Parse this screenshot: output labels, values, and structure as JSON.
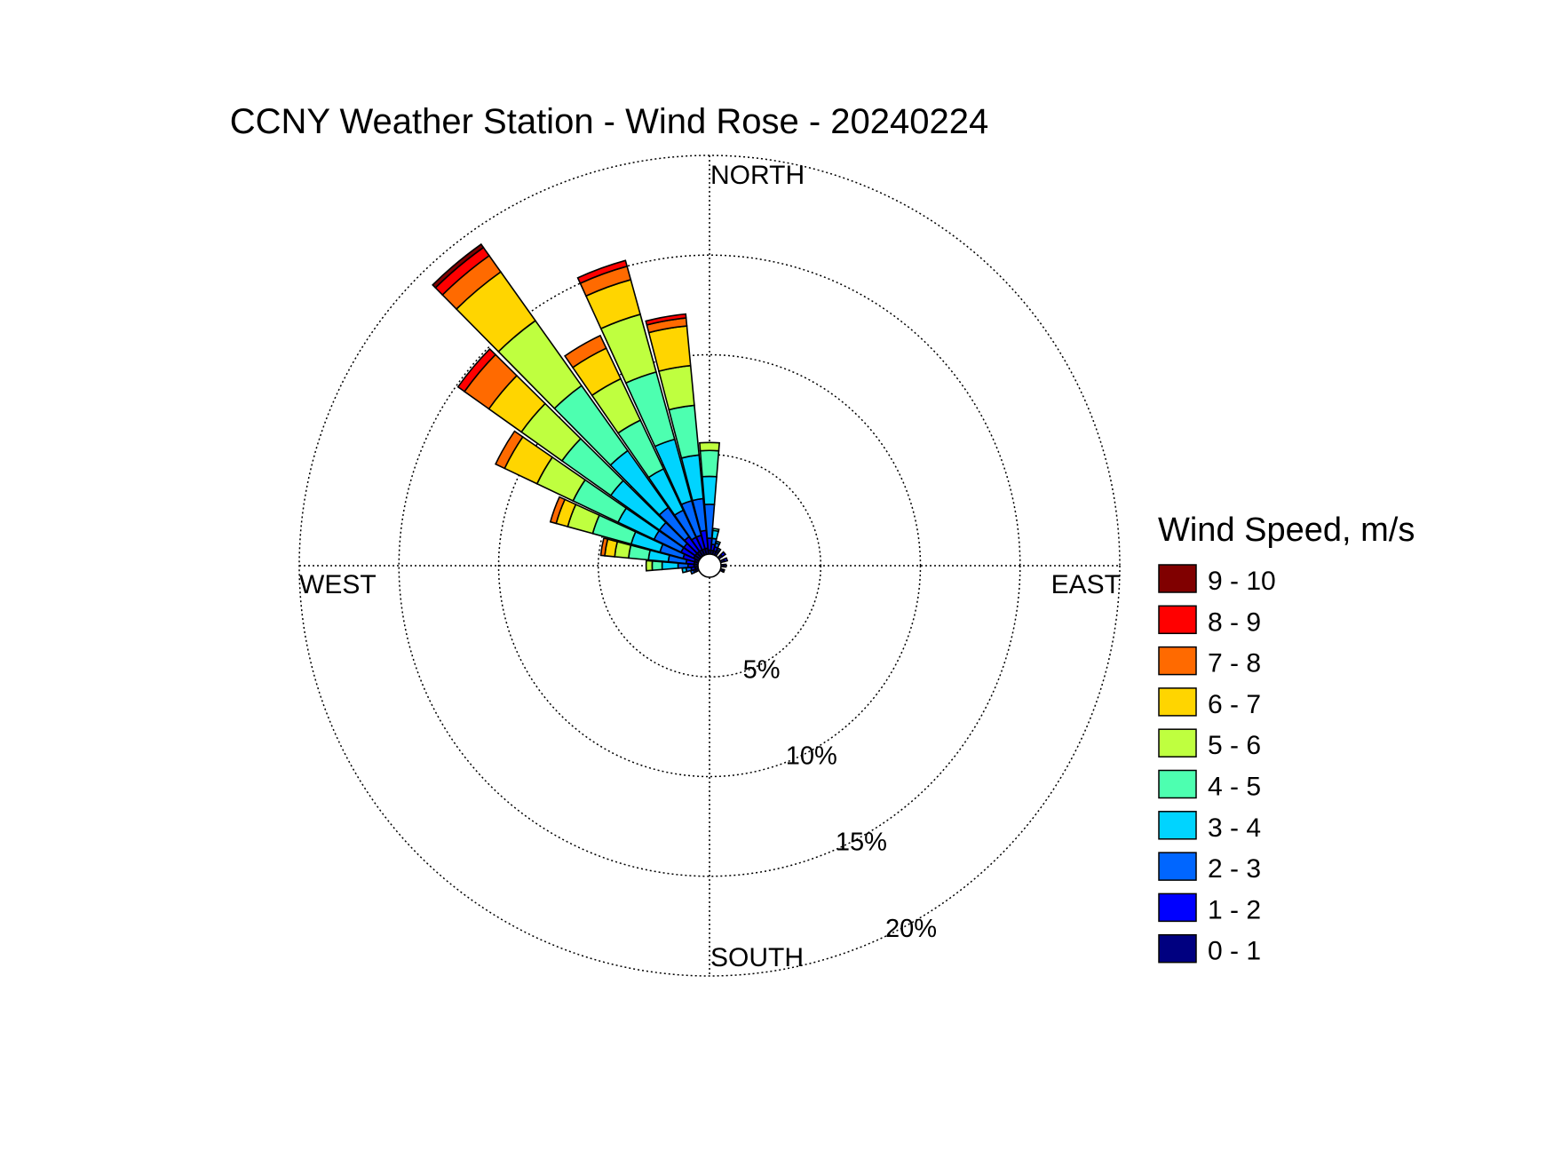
{
  "chart_data": {
    "type": "wind-rose",
    "title": "CCNY Weather Station - Wind Rose - 20240224",
    "directions": {
      "north": "NORTH",
      "south": "SOUTH",
      "east": "EAST",
      "west": "WEST"
    },
    "radial_axis": {
      "max": 20,
      "ticks": [
        5,
        10,
        15,
        20
      ],
      "tick_labels": [
        "5%",
        "10%",
        "15%",
        "20%"
      ]
    },
    "legend": {
      "title": "Wind Speed, m/s",
      "bins": [
        {
          "label": "9 - 10",
          "color": "#800000"
        },
        {
          "label": "8 - 9",
          "color": "#ff0000"
        },
        {
          "label": "7 - 8",
          "color": "#ff6a00"
        },
        {
          "label": "6 - 7",
          "color": "#ffd500"
        },
        {
          "label": "5 - 6",
          "color": "#bfff3f"
        },
        {
          "label": "4 - 5",
          "color": "#4dffb0"
        },
        {
          "label": "3 - 4",
          "color": "#00d4ff"
        },
        {
          "label": "2 - 3",
          "color": "#0066ff"
        },
        {
          "label": "1 - 2",
          "color": "#0000ff"
        },
        {
          "label": "0 - 1",
          "color": "#000080"
        }
      ]
    },
    "speed_bins": [
      "0 - 1",
      "1 - 2",
      "2 - 3",
      "3 - 4",
      "4 - 5",
      "5 - 6",
      "6 - 7",
      "7 - 8",
      "8 - 9",
      "9 - 10"
    ],
    "sector_width_deg": 10,
    "sectors": [
      {
        "direction_deg": 0,
        "cumulative": [
          0.2,
          0.8,
          2.5,
          3.9,
          5.2,
          5.6
        ]
      },
      {
        "direction_deg": 10,
        "cumulative": [
          0.2,
          0.5,
          0.8,
          1.2,
          1.3
        ]
      },
      {
        "direction_deg": 20,
        "cumulative": [
          0.2,
          0.4,
          0.6,
          0.7
        ]
      },
      {
        "direction_deg": 30,
        "cumulative": [
          0.2,
          0.3,
          0.4
        ]
      },
      {
        "direction_deg": 50,
        "cumulative": [
          0.2,
          0.4
        ]
      },
      {
        "direction_deg": 70,
        "cumulative": [
          0.2,
          0.35
        ]
      },
      {
        "direction_deg": 90,
        "cumulative": [
          0.15,
          0.25
        ]
      },
      {
        "direction_deg": 110,
        "cumulative": [
          0.15,
          0.2
        ]
      },
      {
        "direction_deg": 330,
        "cumulative": [
          0.3,
          1.0,
          2.5,
          4.8,
          7.5,
          9.8,
          11.5,
          12.2
        ]
      },
      {
        "direction_deg": 340,
        "cumulative": [
          0.3,
          1.0,
          2.8,
          6.0,
          9.5,
          12.5,
          14.3,
          15.0,
          15.3
        ]
      },
      {
        "direction_deg": 350,
        "cumulative": [
          0.3,
          1.2,
          2.8,
          5.0,
          7.5,
          9.5,
          11.5,
          11.9,
          12.1
        ]
      },
      {
        "direction_deg": 320,
        "cumulative": [
          0.3,
          1.2,
          3.0,
          6.5,
          10.5,
          14.5,
          17.5,
          18.5,
          19.0,
          19.2
        ]
      },
      {
        "direction_deg": 310,
        "cumulative": [
          0.3,
          1.0,
          2.5,
          5.5,
          8.5,
          11.0,
          13.0,
          14.5,
          14.9
        ]
      },
      {
        "direction_deg": 300,
        "cumulative": [
          0.3,
          1.0,
          2.5,
          4.5,
          7.0,
          9.0,
          10.8,
          11.3
        ]
      },
      {
        "direction_deg": 290,
        "cumulative": [
          0.2,
          0.8,
          2.0,
          3.5,
          5.5,
          6.8,
          7.4,
          7.7
        ]
      },
      {
        "direction_deg": 280,
        "cumulative": [
          0.2,
          0.6,
          1.5,
          2.5,
          3.5,
          4.2,
          4.7,
          4.9
        ]
      },
      {
        "direction_deg": 270,
        "cumulative": [
          0.2,
          0.5,
          1.0,
          1.8,
          2.3,
          2.6
        ]
      },
      {
        "direction_deg": 260,
        "cumulative": [
          0.15,
          0.35,
          0.6,
          0.8
        ]
      },
      {
        "direction_deg": 250,
        "cumulative": [
          0.15,
          0.25,
          0.4
        ]
      }
    ]
  }
}
